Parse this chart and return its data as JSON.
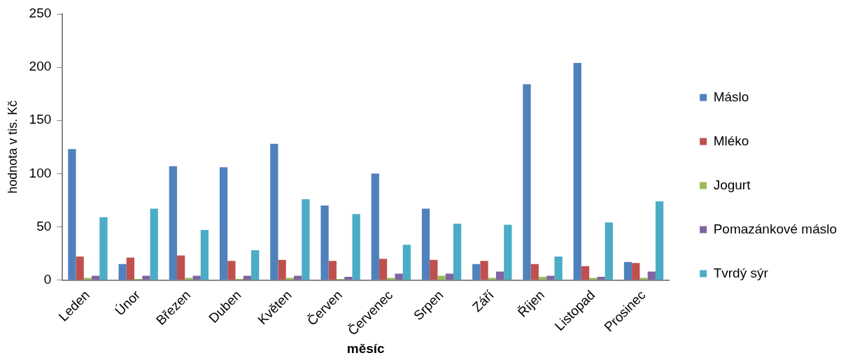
{
  "chart_data": {
    "type": "bar",
    "xlabel": "měsíc",
    "ylabel": "hodnota v tis. Kč",
    "categories": [
      "Leden",
      "Únor",
      "Březen",
      "Duben",
      "Květen",
      "Červen",
      "Červenec",
      "Srpen",
      "Září",
      "Říjen",
      "Listopad",
      "Prosinec"
    ],
    "series": [
      {
        "name": "Máslo",
        "color": "#4f81bd",
        "values": [
          123,
          15,
          107,
          106,
          128,
          70,
          100,
          67,
          15,
          184,
          204,
          17
        ]
      },
      {
        "name": "Mléko",
        "color": "#c0504d",
        "values": [
          22,
          21,
          23,
          18,
          19,
          18,
          20,
          19,
          18,
          15,
          13,
          16
        ]
      },
      {
        "name": "Jogurt",
        "color": "#9bbb59",
        "values": [
          2,
          1,
          2,
          1,
          2,
          1,
          2,
          4,
          2,
          3,
          2,
          2
        ]
      },
      {
        "name": "Pomazánkové máslo",
        "color": "#8064a2",
        "values": [
          4,
          4,
          4,
          4,
          4,
          3,
          6,
          6,
          8,
          4,
          3,
          8
        ]
      },
      {
        "name": "Tvrdý sýr",
        "color": "#4bacc6",
        "values": [
          59,
          67,
          47,
          28,
          76,
          62,
          33,
          53,
          52,
          22,
          54,
          74
        ]
      }
    ],
    "ylim": [
      0,
      250
    ],
    "yticks": [
      0,
      50,
      100,
      150,
      200,
      250
    ],
    "grid": false,
    "legend": "right"
  }
}
